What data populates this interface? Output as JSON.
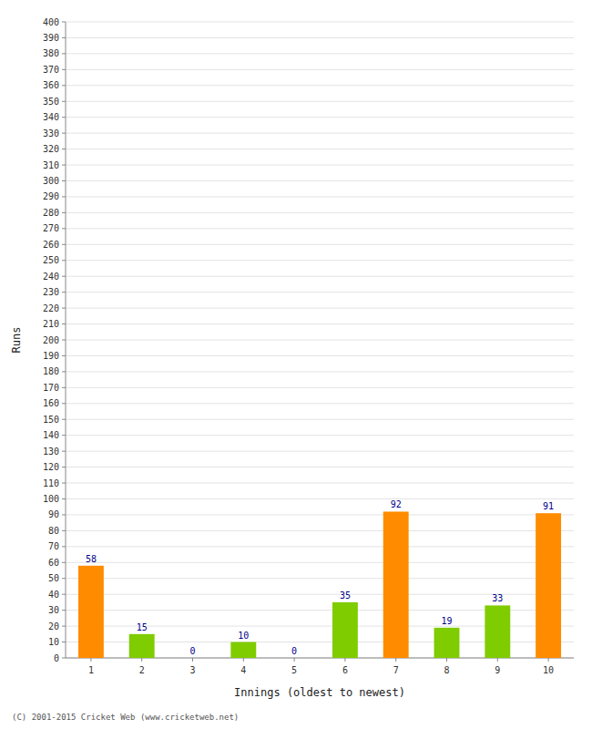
{
  "chart_data": {
    "type": "bar",
    "xlabel": "Innings (oldest to newest)",
    "ylabel": "Runs",
    "categories": [
      "1",
      "2",
      "3",
      "4",
      "5",
      "6",
      "7",
      "8",
      "9",
      "10"
    ],
    "values": [
      58,
      15,
      0,
      10,
      0,
      35,
      92,
      19,
      33,
      91
    ],
    "colors": [
      "#FF8C00",
      "#7FCC00",
      "#7FCC00",
      "#7FCC00",
      "#7FCC00",
      "#7FCC00",
      "#FF8C00",
      "#7FCC00",
      "#7FCC00",
      "#FF8C00"
    ],
    "ylim": [
      0,
      400
    ],
    "yticks": [
      0,
      10,
      20,
      30,
      40,
      50,
      60,
      70,
      80,
      90,
      100,
      110,
      120,
      130,
      140,
      150,
      160,
      170,
      180,
      190,
      200,
      210,
      220,
      230,
      240,
      250,
      260,
      270,
      280,
      290,
      300,
      310,
      320,
      330,
      340,
      350,
      360,
      370,
      380,
      390,
      400
    ],
    "grid": true,
    "data_labels": true,
    "annotations": [
      "(C) 2001-2015 Cricket Web (www.cricketweb.net)"
    ]
  }
}
